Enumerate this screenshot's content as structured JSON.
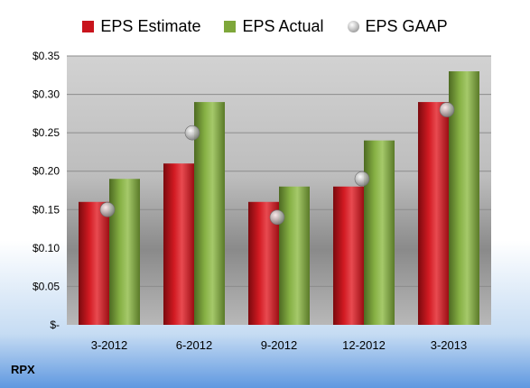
{
  "chart_data": {
    "type": "bar",
    "categories": [
      "3-2012",
      "6-2012",
      "9-2012",
      "12-2012",
      "3-2013"
    ],
    "series": [
      {
        "name": "EPS Estimate",
        "kind": "bar",
        "color": "#c8141c",
        "values": [
          0.16,
          0.21,
          0.16,
          0.18,
          0.29
        ]
      },
      {
        "name": "EPS Actual",
        "kind": "bar",
        "color": "#7ea73a",
        "values": [
          0.19,
          0.29,
          0.18,
          0.24,
          0.33
        ]
      },
      {
        "name": "EPS GAAP",
        "kind": "marker",
        "color": "#b0b0b0",
        "values": [
          0.15,
          0.25,
          0.14,
          0.19,
          0.28
        ]
      }
    ],
    "ylim": [
      0,
      0.35
    ],
    "yticks": [
      0,
      0.05,
      0.1,
      0.15,
      0.2,
      0.25,
      0.3,
      0.35
    ],
    "ytick_labels": [
      "$-",
      "$0.05",
      "$0.10",
      "$0.15",
      "$0.20",
      "$0.25",
      "$0.30",
      "$0.35"
    ],
    "grid": true,
    "legend_position": "top"
  },
  "ticker": "RPX"
}
